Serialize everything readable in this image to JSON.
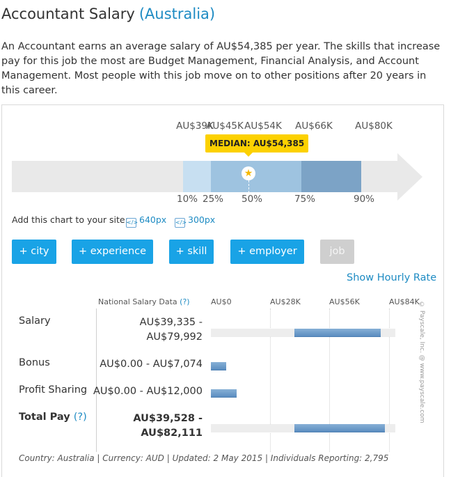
{
  "header": {
    "title": "Accountant Salary",
    "country": "(Australia)"
  },
  "description": "An Accountant earns an average salary of AU$54,385 per year. The skills that increase pay for this job the most are Budget Management, Financial Analysis, and Account Management. Most people with this job move on to other positions after 20 years in this career.",
  "chart": {
    "top_labels": [
      "AU$39K",
      "AU$45K",
      "AU$54K",
      "AU$66K",
      "AU$80K"
    ],
    "median_label": "MEDIAN: AU$54,385",
    "percentiles": [
      "10%",
      "25%",
      "50%",
      "75%",
      "90%"
    ],
    "colors": {
      "p10_25": "#c7dff1",
      "p25_75": "#9ec3e0",
      "p75_90": "#7ca3c6",
      "median": "#fcd100"
    }
  },
  "chart_data": {
    "type": "bar",
    "title": "",
    "categories": [
      "Salary",
      "Bonus",
      "Profit Sharing",
      "Total Pay"
    ],
    "ranges": [
      [
        39335,
        79992
      ],
      [
        0,
        7074
      ],
      [
        0,
        12000
      ],
      [
        39528,
        82111
      ]
    ],
    "xlim": [
      0,
      84000
    ],
    "xticks": [
      "AU$0",
      "AU$28K",
      "AU$56K",
      "AU$84K"
    ]
  },
  "add_chart": {
    "label": "Add this chart to your site:",
    "link_640": "640px",
    "link_300": "300px"
  },
  "filters": [
    "+ city",
    "+ experience",
    "+ skill",
    "+ employer",
    "job"
  ],
  "hourly_link": "Show Hourly Rate",
  "table": {
    "header": "National Salary Data",
    "header_q": "(?)",
    "axis": [
      "AU$0",
      "AU$28K",
      "AU$56K",
      "AU$84K"
    ],
    "rows": [
      {
        "label": "Salary",
        "value_line1": "AU$39,335 -",
        "value_line2": "AU$79,992"
      },
      {
        "label": "Bonus",
        "value_line1": "AU$0.00 - AU$7,074"
      },
      {
        "label": "Profit Sharing",
        "value_line1": "AU$0.00 - AU$12,000"
      },
      {
        "label": "Total Pay",
        "label_q": "(?)",
        "value_line1": "AU$39,528 -",
        "value_line2": "AU$82,111"
      }
    ]
  },
  "watermark": "© Payscale, Inc. @ www.payscale.com",
  "footer": "Country: Australia  |  Currency: AUD  |  Updated: 2 May 2015  |  Individuals Reporting: 2,795"
}
